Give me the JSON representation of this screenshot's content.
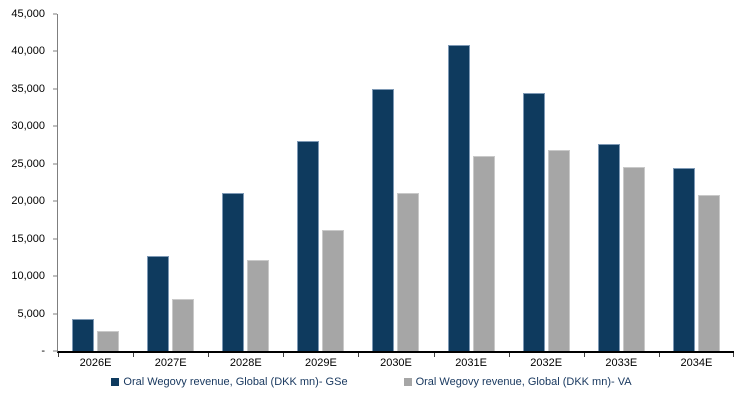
{
  "chart_data": {
    "type": "bar",
    "title": "",
    "xlabel": "",
    "ylabel": "",
    "categories": [
      "2026E",
      "2027E",
      "2028E",
      "2029E",
      "2030E",
      "2031E",
      "2032E",
      "2033E",
      "2034E"
    ],
    "series": [
      {
        "name": "Oral Wegovy revenue, Global (DKK mn)- GSe",
        "color": "#0E3A5E",
        "values": [
          4300,
          12700,
          21100,
          28000,
          35000,
          40900,
          34500,
          27600,
          24500
        ]
      },
      {
        "name": "Oral Wegovy revenue, Global (DKK mn)- VA",
        "color": "#A6A6A6",
        "values": [
          2700,
          7000,
          12200,
          16100,
          21100,
          26100,
          26800,
          24600,
          20800
        ]
      }
    ],
    "ylim": [
      0,
      45000
    ],
    "ytick_interval": 5000,
    "ytick_labels": [
      "45,000",
      "40,000",
      "35,000",
      "30,000",
      "25,000",
      "20,000",
      "15,000",
      "10,000",
      "5,000",
      "-"
    ],
    "grid": false,
    "legend_position": "bottom",
    "colors": {
      "gse_bar": "#0E3A5E",
      "va_bar": "#A6A6A6",
      "legend_text": "#17375E",
      "y_axis_line": "#7F7F7F",
      "x_axis_line": "#000000",
      "tick_label": "#000000"
    }
  }
}
